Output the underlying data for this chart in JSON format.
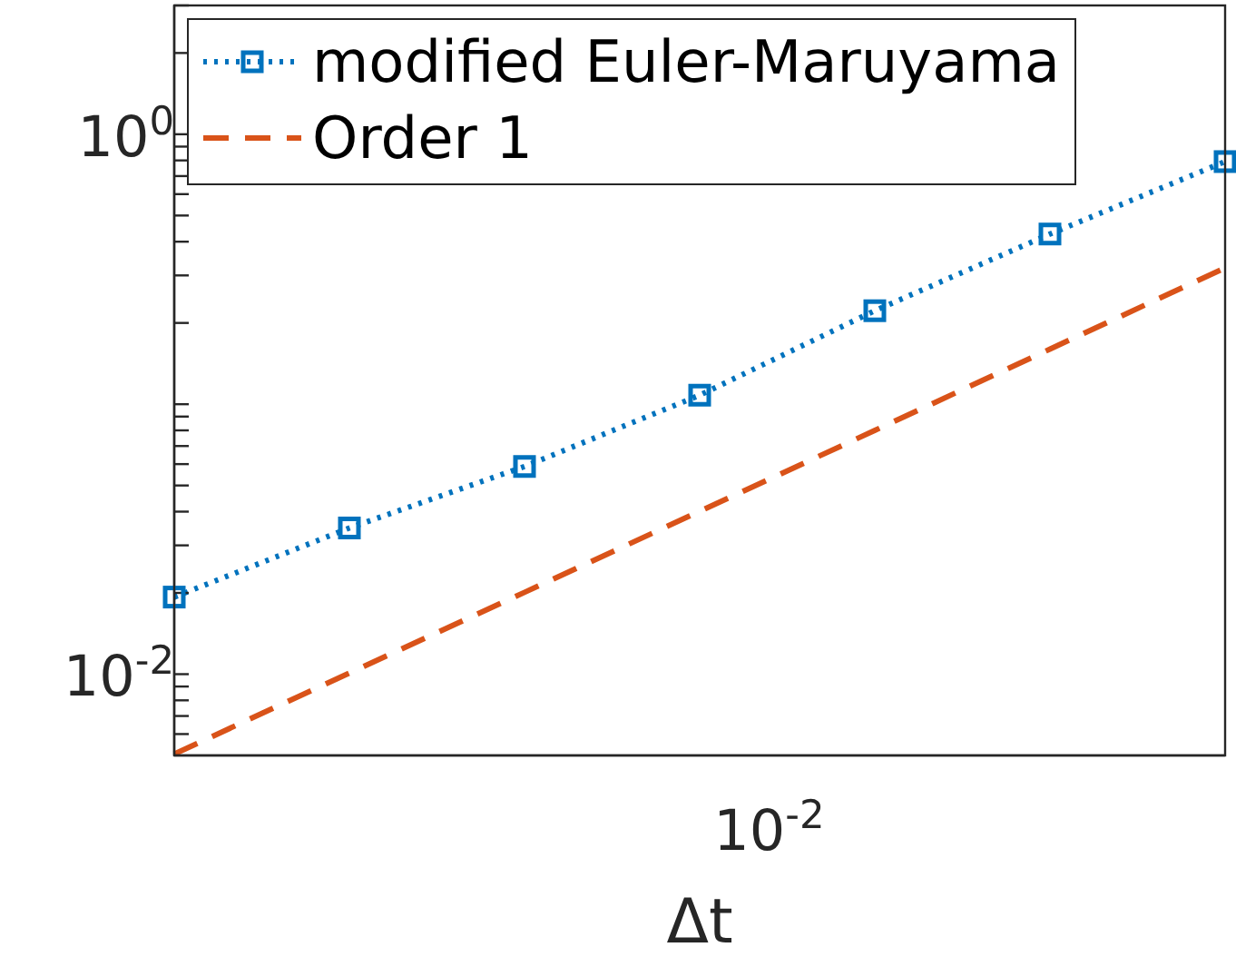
{
  "chart_data": {
    "type": "line",
    "xlabel": "Δt",
    "log": "y",
    "legend": "top left",
    "categories": [
      null,
      null,
      null,
      null,
      null,
      null,
      null
    ],
    "annotations": [
      "10$^{-2}$"
    ],
    "ylim": [
      0.005,
      3
    ],
    "yticks": [
      {
        "value": 0.006,
        "label": null
      },
      {
        "value": 0.007,
        "label": null
      },
      {
        "value": 0.008,
        "label": null
      },
      {
        "value": 0.009,
        "label": null
      },
      {
        "value": 0.01,
        "label": "10$^{-2}$"
      },
      {
        "value": 0.02,
        "label": null
      },
      {
        "value": 0.03,
        "label": null
      },
      {
        "value": 0.04,
        "label": null
      },
      {
        "value": 0.05,
        "label": null
      },
      {
        "value": 0.06,
        "label": null
      },
      {
        "value": 0.07,
        "label": null
      },
      {
        "value": 0.08,
        "label": null
      },
      {
        "value": 0.09,
        "label": null
      },
      {
        "value": 0.1,
        "label": null
      },
      {
        "value": 0.2,
        "label": null
      },
      {
        "value": 0.3,
        "label": null
      },
      {
        "value": 0.4,
        "label": null
      },
      {
        "value": 0.5,
        "label": null
      },
      {
        "value": 0.6,
        "label": null
      },
      {
        "value": 0.7,
        "label": null
      },
      {
        "value": 0.8,
        "label": null
      },
      {
        "value": 0.9,
        "label": null
      },
      {
        "value": 1,
        "label": "10$^{0}$"
      },
      {
        "value": 2,
        "label": null
      },
      {
        "value": 3,
        "label": null
      }
    ],
    "series": [
      {
        "name": "modified Euler-Maruyama",
        "color": "#0072bd",
        "line_style": "dotted",
        "marker": "square",
        "values": [
          0.0193,
          0.0348,
          0.0588,
          0.108,
          0.222,
          0.427,
          0.792
        ]
      },
      {
        "name": "Order 1",
        "color": "#d95319",
        "line_style": "dashed",
        "marker": "none",
        "values": [
          0.00506,
          0.0101,
          0.0201,
          0.0401,
          0.08,
          0.16,
          0.32
        ]
      }
    ]
  }
}
